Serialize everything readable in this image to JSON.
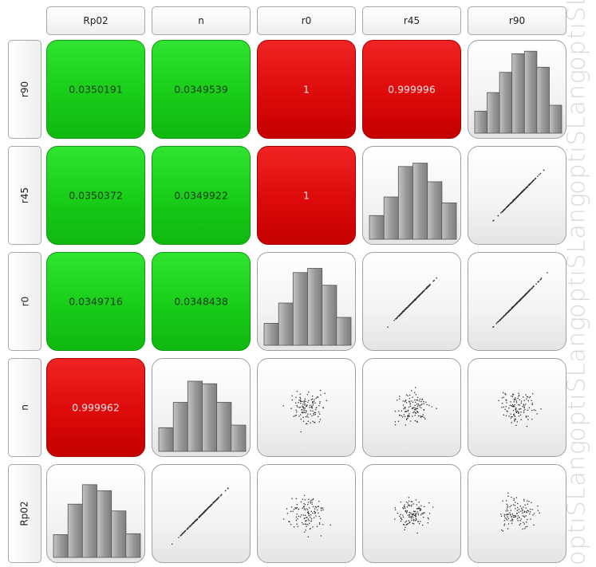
{
  "chart_data": {
    "type": "scatter-matrix",
    "variables": [
      "Rp02",
      "n",
      "r0",
      "r45",
      "r90"
    ],
    "column_labels": [
      "Rp02",
      "n",
      "r0",
      "r45",
      "r90"
    ],
    "row_labels": [
      "r90",
      "r45",
      "r0",
      "n",
      "Rp02"
    ],
    "correlations": [
      {
        "row": "r90",
        "col": "Rp02",
        "value": "0.0350191",
        "level": "low"
      },
      {
        "row": "r90",
        "col": "n",
        "value": "0.0349539",
        "level": "low"
      },
      {
        "row": "r90",
        "col": "r0",
        "value": "1",
        "level": "high"
      },
      {
        "row": "r90",
        "col": "r45",
        "value": "0.999996",
        "level": "high"
      },
      {
        "row": "r45",
        "col": "Rp02",
        "value": "0.0350372",
        "level": "low"
      },
      {
        "row": "r45",
        "col": "n",
        "value": "0.0349922",
        "level": "low"
      },
      {
        "row": "r45",
        "col": "r0",
        "value": "1",
        "level": "high"
      },
      {
        "row": "r0",
        "col": "Rp02",
        "value": "0.0349716",
        "level": "low"
      },
      {
        "row": "r0",
        "col": "n",
        "value": "0.0348438",
        "level": "low"
      },
      {
        "row": "n",
        "col": "Rp02",
        "value": "0.999962",
        "level": "high"
      }
    ],
    "histograms": {
      "r90": [
        0.26,
        0.48,
        0.72,
        0.94,
        0.97,
        0.78,
        0.33
      ],
      "r45": [
        0.28,
        0.5,
        0.86,
        0.9,
        0.68,
        0.43
      ],
      "r0": [
        0.26,
        0.5,
        0.86,
        0.91,
        0.71,
        0.33
      ],
      "n": [
        0.28,
        0.58,
        0.83,
        0.8,
        0.58,
        0.31
      ],
      "Rp02": [
        0.27,
        0.63,
        0.86,
        0.79,
        0.55,
        0.28
      ]
    },
    "scatter_kind": {
      "linear": [
        [
          "r45",
          "r90"
        ],
        [
          "r0",
          "r90"
        ],
        [
          "r0",
          "r45"
        ],
        [
          "Rp02",
          "n"
        ]
      ],
      "cloud": [
        [
          "n",
          "r0"
        ],
        [
          "n",
          "r45"
        ],
        [
          "n",
          "r90"
        ],
        [
          "Rp02",
          "r0"
        ],
        [
          "Rp02",
          "r45"
        ],
        [
          "Rp02",
          "r90"
        ]
      ]
    },
    "colors": {
      "low": "#18cc18",
      "high": "#dd0a0a",
      "bar": "#9a9a9a",
      "point": "#333333"
    }
  },
  "watermark": {
    "text": "optiSLang"
  }
}
